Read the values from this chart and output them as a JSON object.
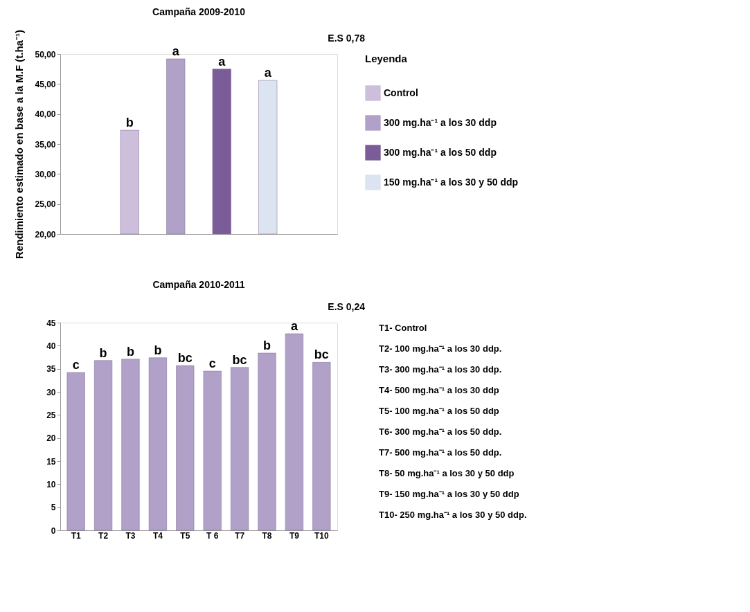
{
  "chart_data": [
    {
      "type": "bar",
      "title": "Campaña 2009-2010",
      "ylabel": "Rendimiento estimado en base a la M.F (t.ha⁻¹)",
      "legend_title": "Leyenda",
      "legend": "right",
      "tick_labels": "y",
      "grid": false,
      "categories": [
        null
      ],
      "series": [
        {
          "name": "Control",
          "color": "#cdbfdc",
          "values": [
            37.3
          ],
          "value_labels": [
            "b"
          ]
        },
        {
          "name": "300 mg.ha⁻¹  a los 30 ddp",
          "color": "#b1a1c9",
          "values": [
            49.2
          ],
          "value_labels": [
            "a"
          ]
        },
        {
          "name": "300 mg.ha⁻¹  a los 50 ddp",
          "color": "#7a5c99",
          "values": [
            47.5
          ],
          "value_labels": [
            "a"
          ]
        },
        {
          "name": "150 mg.ha⁻¹ a los 30 y 50 ddp",
          "color": "#dbe4f0",
          "values": [
            45.6
          ],
          "value_labels": [
            "a"
          ]
        }
      ],
      "ylim": [
        20,
        50
      ],
      "yticks": [
        {
          "value": 20,
          "label": "20,00"
        },
        {
          "value": 25,
          "label": "25,00"
        },
        {
          "value": 30,
          "label": "30,00"
        },
        {
          "value": 35,
          "label": "35,00"
        },
        {
          "value": 40,
          "label": "40,00"
        },
        {
          "value": 45,
          "label": "45,00"
        },
        {
          "value": 50,
          "label": "50,00"
        }
      ],
      "annotations": [
        "E.S  0,78"
      ]
    },
    {
      "type": "bar",
      "title": "Campaña 2010-2011",
      "grid": false,
      "categories": [
        "T1",
        "T2",
        "T3",
        "T4",
        "T5",
        "T 6",
        "T7",
        "T8",
        "T9",
        "T10"
      ],
      "values": [
        34.2,
        36.8,
        37.1,
        37.4,
        35.7,
        34.5,
        35.3,
        38.4,
        42.6,
        36.4
      ],
      "color": "#b1a1c9",
      "value_labels": [
        "c",
        "b",
        "b",
        "b",
        "bc",
        "c",
        "bc",
        "b",
        "a",
        "bc"
      ],
      "ylim": [
        0,
        45
      ],
      "yticks": [
        0,
        5,
        10,
        15,
        20,
        25,
        30,
        35,
        40,
        45
      ],
      "annotations": [
        "E.S  0,24",
        "T1- Control",
        "T2- 100 mg.ha⁻¹ a los 30 ddp.",
        "T3- 300 mg.ha⁻¹ a los 30 ddp.",
        "T4- 500 mg.ha⁻¹ a los 30 ddp",
        "T5- 100 mg.ha⁻¹ a los 50 ddp",
        "T6- 300 mg.ha⁻¹ a los 50 ddp.",
        "T7- 500 mg.ha⁻¹ a los 50 ddp.",
        "T8-  50 mg.ha⁻¹ a los  30 y 50 ddp",
        "T9- 150 mg.ha⁻¹ a los  30 y 50 ddp",
        "T10- 250 mg.ha⁻¹ a los  30 y 50 ddp."
      ]
    }
  ]
}
